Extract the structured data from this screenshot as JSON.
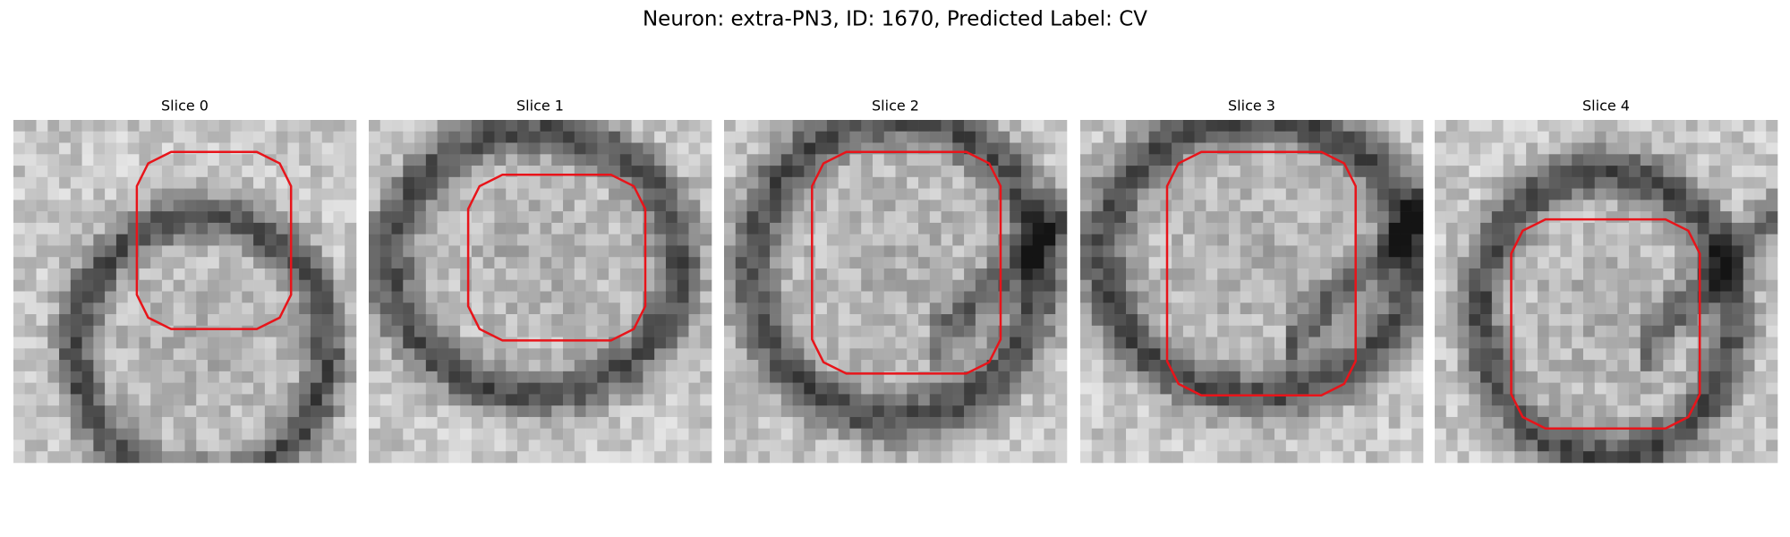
{
  "title": "Neuron: extra-PN3, ID: 1670, Predicted Label: CV",
  "panels": [
    {
      "title": "Slice 0"
    },
    {
      "title": "Slice 1"
    },
    {
      "title": "Slice 2"
    },
    {
      "title": "Slice 3"
    },
    {
      "title": "Slice 4"
    }
  ]
}
